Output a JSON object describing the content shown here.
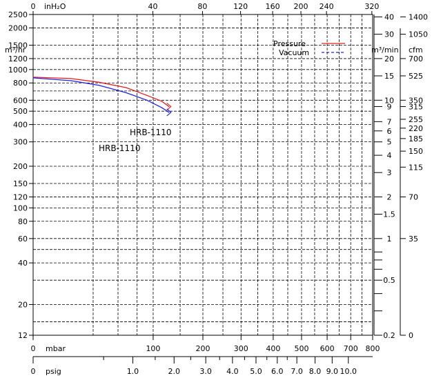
{
  "chart_data": {
    "type": "line",
    "title": "",
    "grid": true,
    "x_axis": {
      "scale": "sqrt",
      "lim": [
        0,
        800
      ],
      "unit": "mbar",
      "ticks": [
        "0",
        "100",
        "200",
        "300",
        "400",
        "500",
        "600",
        "700",
        "800"
      ]
    },
    "x_axis_top": {
      "unit": "inH₂O",
      "ticks": [
        "0",
        "40",
        "80",
        "120",
        "160",
        "200",
        "240",
        "320"
      ]
    },
    "x_axis_bottom2": {
      "unit": "psig",
      "ticks": [
        "0",
        "1.0",
        "2.0",
        "3.0",
        "4.0",
        "5.0",
        "6.0",
        "7.0",
        "8.0",
        "9.0",
        "10.0"
      ]
    },
    "y_axis": {
      "scale": "log",
      "lim": [
        12,
        2500
      ],
      "unit": "m³/hr",
      "ticks": [
        "2500",
        "2000",
        "1500",
        "1200",
        "1000",
        "800",
        "600",
        "500",
        "400",
        "300",
        "200",
        "150",
        "120",
        "100",
        "80",
        "60",
        "40",
        "20",
        "12"
      ]
    },
    "y_axis_right1": {
      "unit": "m³/min",
      "ticks": [
        "40",
        "30",
        "20",
        "15",
        "10",
        "9",
        "7",
        "6",
        "5",
        "4",
        "3",
        "2",
        "1.5",
        "1",
        "0.5",
        "0.2"
      ]
    },
    "y_axis_right2": {
      "unit": "cfm",
      "ticks": [
        "1400",
        "1050",
        "700",
        "525",
        "350",
        "315",
        "255",
        "220",
        "185",
        "150",
        "115",
        "70",
        "35",
        "0"
      ]
    },
    "legend": {
      "position": "top-right",
      "entries": [
        {
          "label": "Pressure",
          "color": "#e02020",
          "style": "solid"
        },
        {
          "label": "Vacuum",
          "color": "#2020e0",
          "style": "dashed"
        }
      ]
    },
    "series": [
      {
        "name": "Pressure",
        "color": "#e02020",
        "x": [
          0,
          10,
          30,
          60,
          90,
          115,
          128
        ],
        "y": [
          880,
          860,
          810,
          740,
          650,
          590,
          540
        ]
      },
      {
        "name": "Vacuum",
        "color": "#2020e0",
        "x": [
          0,
          10,
          30,
          60,
          90,
          115,
          128
        ],
        "y": [
          870,
          830,
          770,
          680,
          600,
          530,
          490
        ]
      }
    ],
    "annotations": [
      "HRB-1110",
      "HRB-1110"
    ]
  }
}
